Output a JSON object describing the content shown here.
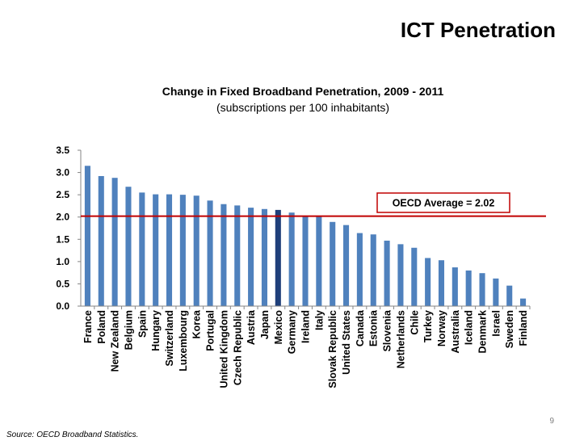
{
  "slide": {
    "title": "ICT Penetration",
    "page_number": "9",
    "source": "Source: OECD Broadband Statistics."
  },
  "chart_data": {
    "type": "bar",
    "title": "Change in Fixed Broadband Penetration, 2009 - 2011",
    "subtitle": "(subscriptions per 100 inhabitants)",
    "xlabel": "",
    "ylabel": "",
    "ylim": [
      0,
      3.5
    ],
    "yticks": [
      "0.0",
      "0.5",
      "1.0",
      "1.5",
      "2.0",
      "2.5",
      "3.0",
      "3.5"
    ],
    "categories": [
      "France",
      "Poland",
      "New Zealand",
      "Belgium",
      "Spain",
      "Hungary",
      "Switzerland",
      "Luxembourg",
      "Korea",
      "Portugal",
      "United Kingdom",
      "Czech Republic",
      "Austria",
      "Japan",
      "Mexico",
      "Germany",
      "Ireland",
      "Italy",
      "Slovak Republic",
      "United States",
      "Canada",
      "Estonia",
      "Slovenia",
      "Netherlands",
      "Chile",
      "Turkey",
      "Norway",
      "Australia",
      "Iceland",
      "Denmark",
      "Israel",
      "Sweden",
      "Finland"
    ],
    "values": [
      3.15,
      2.92,
      2.88,
      2.68,
      2.55,
      2.51,
      2.51,
      2.5,
      2.48,
      2.37,
      2.29,
      2.26,
      2.21,
      2.18,
      2.16,
      2.1,
      2.03,
      2.02,
      1.89,
      1.82,
      1.64,
      1.61,
      1.47,
      1.39,
      1.31,
      1.08,
      1.03,
      0.87,
      0.8,
      0.74,
      0.62,
      0.46,
      0.17
    ],
    "highlight_category": "Mexico",
    "bar_color": "#4f81bd",
    "highlight_color": "#1f3f7a",
    "reference_line": {
      "label": "OECD Average = 2.02",
      "value": 2.02,
      "color": "#c00000"
    }
  }
}
